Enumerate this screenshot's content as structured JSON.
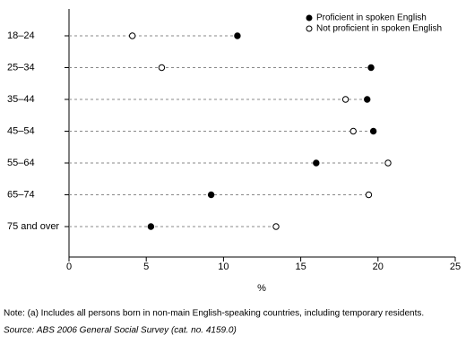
{
  "chart_data": {
    "type": "dot",
    "categories": [
      "18–24",
      "25–34",
      "35–44",
      "45–54",
      "55–64",
      "65–74",
      "75 and over"
    ],
    "series": [
      {
        "name": "Proficient in spoken English",
        "color": "#000000",
        "values": [
          10.9,
          19.55,
          19.3,
          19.7,
          16.0,
          9.2,
          5.3
        ]
      },
      {
        "name": "Not proficient in spoken English",
        "color": "#ffffff",
        "values": [
          4.1,
          6.0,
          17.9,
          18.4,
          20.65,
          19.4,
          13.4
        ]
      }
    ],
    "xlabel": "%",
    "xlim": [
      0,
      25
    ],
    "xticks": [
      0,
      5,
      10,
      15,
      20,
      25
    ],
    "legend": "upper right",
    "notes": [
      "Note: (a) Includes all persons born in non-main English-speaking countries, including temporary residents.",
      "Source: ABS 2006 General Social Survey (cat. no. 4159.0)"
    ]
  }
}
